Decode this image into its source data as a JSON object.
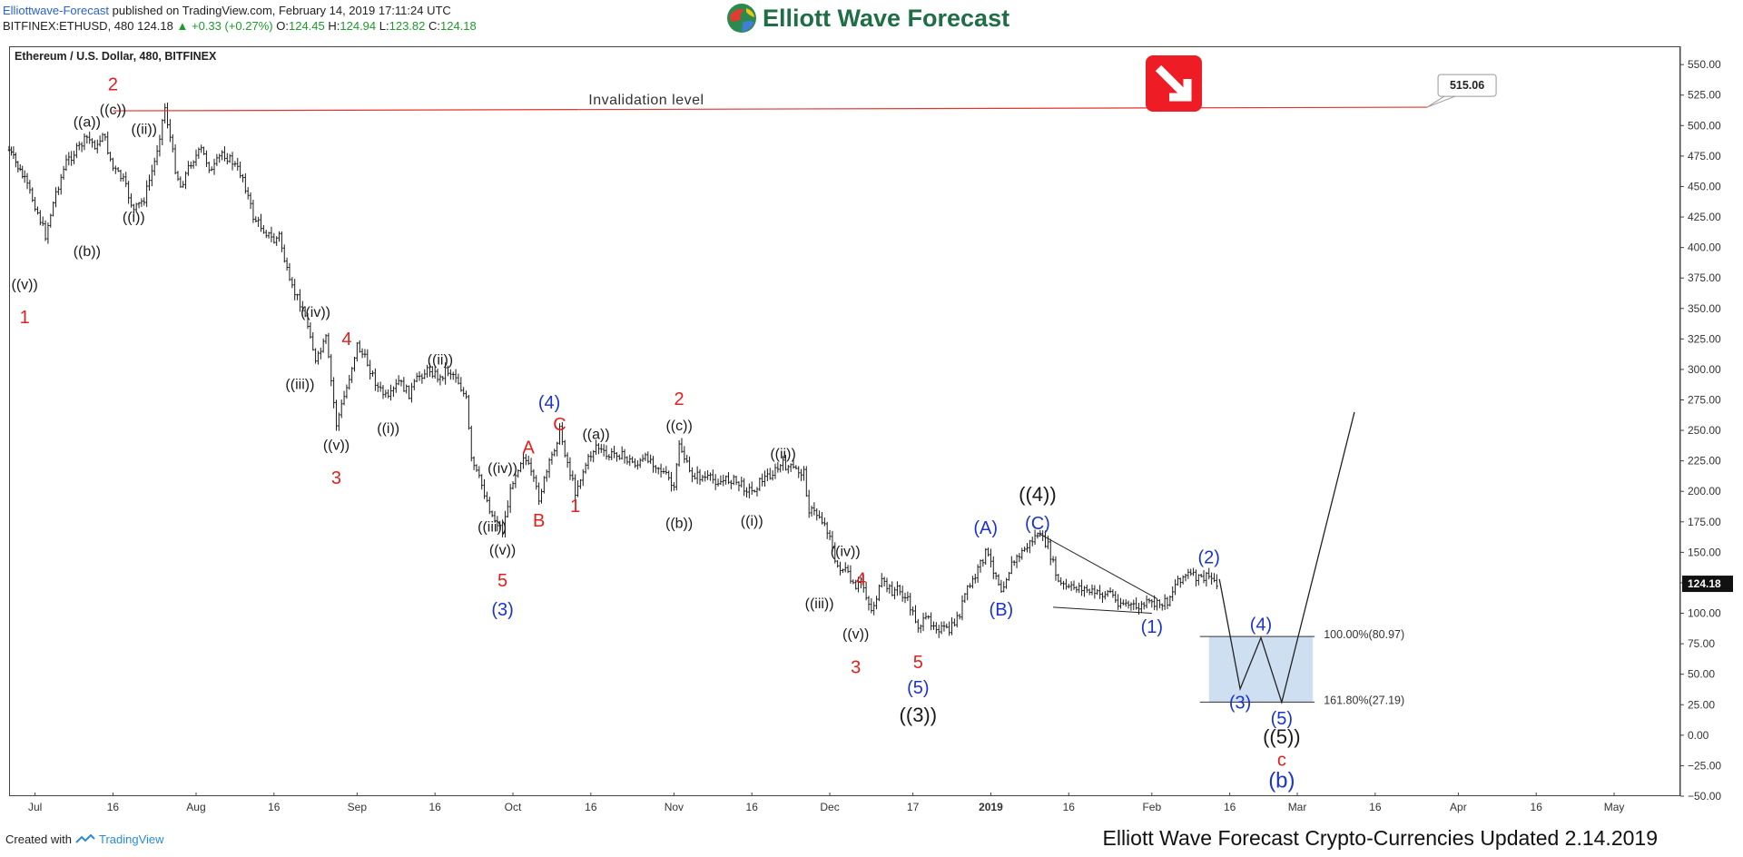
{
  "header": {
    "publisher": "Elliottwave-Forecast",
    "published_text": "published on TradingView.com, February 14, 2019 17:11:24 UTC",
    "ticker": "BITFINEX:ETHUSD, 480",
    "last": "124.18",
    "change": "+0.33 (+0.27%)",
    "o_label": "O:",
    "o_value": "124.45",
    "h_label": "H:",
    "h_value": "124.94",
    "l_label": "L:",
    "l_value": "123.82",
    "c_label": "C:",
    "c_value": "124.18"
  },
  "logo": {
    "text": "Elliott Wave Forecast"
  },
  "footer": {
    "created_with": "Created with",
    "tradingview": "TradingView",
    "update_text": "Elliott Wave Forecast Crypto-Currencies Updated 2.14.2019"
  },
  "chart_data": {
    "type": "candlestick",
    "title": "Ethereum / U.S. Dollar, 480, BITFINEX",
    "ylim": [
      -50,
      565
    ],
    "y_ticks": [
      "550.00",
      "525.00",
      "500.00",
      "475.00",
      "450.00",
      "425.00",
      "400.00",
      "375.00",
      "350.00",
      "325.00",
      "300.00",
      "275.00",
      "250.00",
      "225.00",
      "200.00",
      "175.00",
      "150.00",
      "125.00",
      "100.00",
      "75.00",
      "50.00",
      "25.00",
      "0.00",
      "−25.00",
      "−50.00"
    ],
    "x_ticks": [
      "Jul",
      "16",
      "Aug",
      "16",
      "Sep",
      "16",
      "Oct",
      "16",
      "Nov",
      "16",
      "Dec",
      "17",
      "2019",
      "16",
      "Feb",
      "16",
      "Mar",
      "16",
      "Apr",
      "16",
      "May"
    ],
    "x_range": [
      "2018-06-26",
      "2019-05-12"
    ],
    "last_price_label": "124.18",
    "price_path": [
      [
        "2018-06-26",
        480
      ],
      [
        "2018-06-29",
        455
      ],
      [
        "2018-07-01",
        435
      ],
      [
        "2018-07-03",
        410
      ],
      [
        "2018-07-05",
        445
      ],
      [
        "2018-07-07",
        470
      ],
      [
        "2018-07-09",
        480
      ],
      [
        "2018-07-11",
        490
      ],
      [
        "2018-07-13",
        482
      ],
      [
        "2018-07-14",
        495
      ],
      [
        "2018-07-16",
        465
      ],
      [
        "2018-07-18",
        455
      ],
      [
        "2018-07-20",
        430
      ],
      [
        "2018-07-22",
        440
      ],
      [
        "2018-07-24",
        470
      ],
      [
        "2018-07-26",
        515
      ],
      [
        "2018-07-28",
        465
      ],
      [
        "2018-07-29",
        450
      ],
      [
        "2018-07-31",
        470
      ],
      [
        "2018-08-02",
        480
      ],
      [
        "2018-08-04",
        462
      ],
      [
        "2018-08-06",
        478
      ],
      [
        "2018-08-08",
        470
      ],
      [
        "2018-08-10",
        458
      ],
      [
        "2018-08-12",
        425
      ],
      [
        "2018-08-14",
        415
      ],
      [
        "2018-08-16",
        405
      ],
      [
        "2018-08-17",
        410
      ],
      [
        "2018-08-19",
        370
      ],
      [
        "2018-08-21",
        355
      ],
      [
        "2018-08-23",
        330
      ],
      [
        "2018-08-24",
        305
      ],
      [
        "2018-08-26",
        325
      ],
      [
        "2018-08-28",
        255
      ],
      [
        "2018-08-30",
        285
      ],
      [
        "2018-09-01",
        320
      ],
      [
        "2018-09-03",
        305
      ],
      [
        "2018-09-05",
        285
      ],
      [
        "2018-09-07",
        275
      ],
      [
        "2018-09-09",
        290
      ],
      [
        "2018-09-11",
        280
      ],
      [
        "2018-09-13",
        295
      ],
      [
        "2018-09-15",
        300
      ],
      [
        "2018-09-17",
        292
      ],
      [
        "2018-09-18",
        300
      ],
      [
        "2018-09-20",
        295
      ],
      [
        "2018-09-22",
        275
      ],
      [
        "2018-09-23",
        225
      ],
      [
        "2018-09-25",
        205
      ],
      [
        "2018-09-27",
        180
      ],
      [
        "2018-09-29",
        168
      ],
      [
        "2018-10-01",
        210
      ],
      [
        "2018-10-03",
        230
      ],
      [
        "2018-10-04",
        220
      ],
      [
        "2018-10-06",
        195
      ],
      [
        "2018-10-08",
        222
      ],
      [
        "2018-10-10",
        250
      ],
      [
        "2018-10-12",
        215
      ],
      [
        "2018-10-13",
        200
      ],
      [
        "2018-10-15",
        222
      ],
      [
        "2018-10-17",
        238
      ],
      [
        "2018-10-19",
        228
      ],
      [
        "2018-10-21",
        232
      ],
      [
        "2018-10-23",
        226
      ],
      [
        "2018-10-25",
        222
      ],
      [
        "2018-10-27",
        228
      ],
      [
        "2018-10-29",
        220
      ],
      [
        "2018-10-31",
        210
      ],
      [
        "2018-11-01",
        200
      ],
      [
        "2018-11-02",
        240
      ],
      [
        "2018-11-04",
        215
      ],
      [
        "2018-11-06",
        212
      ],
      [
        "2018-11-08",
        210
      ],
      [
        "2018-11-10",
        208
      ],
      [
        "2018-11-12",
        210
      ],
      [
        "2018-11-14",
        205
      ],
      [
        "2018-11-16",
        200
      ],
      [
        "2018-11-18",
        210
      ],
      [
        "2018-11-20",
        215
      ],
      [
        "2018-11-22",
        222
      ],
      [
        "2018-11-24",
        218
      ],
      [
        "2018-11-26",
        215
      ],
      [
        "2018-11-27",
        185
      ],
      [
        "2018-11-29",
        180
      ],
      [
        "2018-12-01",
        165
      ],
      [
        "2018-12-02",
        140
      ],
      [
        "2018-12-04",
        135
      ],
      [
        "2018-12-06",
        118
      ],
      [
        "2018-12-07",
        128
      ],
      [
        "2018-12-09",
        102
      ],
      [
        "2018-12-11",
        125
      ],
      [
        "2018-12-13",
        118
      ],
      [
        "2018-12-14",
        120
      ],
      [
        "2018-12-16",
        110
      ],
      [
        "2018-12-18",
        90
      ],
      [
        "2018-12-20",
        95
      ],
      [
        "2018-12-22",
        88
      ],
      [
        "2018-12-24",
        85
      ],
      [
        "2018-12-26",
        100
      ],
      [
        "2018-12-27",
        115
      ],
      [
        "2018-12-29",
        130
      ],
      [
        "2018-12-31",
        150
      ],
      [
        "2019-01-02",
        132
      ],
      [
        "2019-01-03",
        120
      ],
      [
        "2019-01-05",
        140
      ],
      [
        "2019-01-07",
        150
      ],
      [
        "2019-01-09",
        160
      ],
      [
        "2019-01-10",
        165
      ],
      [
        "2019-01-12",
        155
      ],
      [
        "2019-01-14",
        125
      ],
      [
        "2019-01-16",
        120
      ],
      [
        "2019-01-18",
        122
      ],
      [
        "2019-01-20",
        118
      ],
      [
        "2019-01-22",
        115
      ],
      [
        "2019-01-24",
        118
      ],
      [
        "2019-01-25",
        110
      ],
      [
        "2019-01-27",
        108
      ],
      [
        "2019-01-29",
        104
      ],
      [
        "2019-01-31",
        108
      ],
      [
        "2019-02-02",
        107
      ],
      [
        "2019-02-04",
        110
      ],
      [
        "2019-02-06",
        128
      ],
      [
        "2019-02-08",
        132
      ],
      [
        "2019-02-10",
        128
      ],
      [
        "2019-02-12",
        130
      ],
      [
        "2019-02-14",
        124
      ]
    ],
    "invalidation": {
      "value": 515.06,
      "label": "Invalidation level",
      "from": "2018-07-16",
      "to": "2019-03-26",
      "price_label": "515.06"
    },
    "projection": {
      "path": [
        [
          "2019-02-14",
          128
        ],
        [
          "2019-02-18",
          38
        ],
        [
          "2019-02-22",
          80
        ],
        [
          "2019-02-26",
          27
        ],
        [
          "2019-03-12",
          265
        ]
      ],
      "box": {
        "from": "2019-02-12",
        "to": "2019-03-04",
        "top": 80.97,
        "bottom": 27.19
      },
      "fib_labels": [
        {
          "text": "100.00%(80.97)",
          "value": 80.97
        },
        {
          "text": "161.80%(27.19)",
          "value": 27.19
        }
      ]
    },
    "trendlines": [
      [
        [
          "2019-01-10",
          166
        ],
        [
          "2019-02-02",
          112
        ]
      ],
      [
        [
          "2019-01-13",
          105
        ],
        [
          "2019-02-01",
          100
        ]
      ]
    ],
    "wave_labels": [
      {
        "t": "2",
        "d": "2018-07-16",
        "v": 529,
        "c": "red",
        "s": 20
      },
      {
        "t": "((c))",
        "d": "2018-07-16",
        "v": 509,
        "c": "black",
        "s": 16
      },
      {
        "t": "((a))",
        "d": "2018-07-11",
        "v": 499,
        "c": "black",
        "s": 16
      },
      {
        "t": "((ii))",
        "d": "2018-07-22",
        "v": 493,
        "c": "black",
        "s": 16
      },
      {
        "t": "((i))",
        "d": "2018-07-20",
        "v": 421,
        "c": "black",
        "s": 16
      },
      {
        "t": "((b))",
        "d": "2018-07-11",
        "v": 393,
        "c": "black",
        "s": 16
      },
      {
        "t": "((v))",
        "d": "2018-06-29",
        "v": 366,
        "c": "black",
        "s": 16
      },
      {
        "t": "1",
        "d": "2018-06-29",
        "v": 338,
        "c": "red",
        "s": 20
      },
      {
        "t": "((iv))",
        "d": "2018-08-24",
        "v": 343,
        "c": "black",
        "s": 16
      },
      {
        "t": "4",
        "d": "2018-08-30",
        "v": 320,
        "c": "red",
        "s": 20
      },
      {
        "t": "((ii))",
        "d": "2018-09-17",
        "v": 304,
        "c": "black",
        "s": 16
      },
      {
        "t": "((iii))",
        "d": "2018-08-21",
        "v": 284,
        "c": "black",
        "s": 16
      },
      {
        "t": "((i))",
        "d": "2018-09-07",
        "v": 248,
        "c": "black",
        "s": 16
      },
      {
        "t": "((v))",
        "d": "2018-08-28",
        "v": 234,
        "c": "black",
        "s": 16
      },
      {
        "t": "3",
        "d": "2018-08-28",
        "v": 206,
        "c": "red",
        "s": 20
      },
      {
        "t": "(4)",
        "d": "2018-10-08",
        "v": 268,
        "c": "blue",
        "s": 20
      },
      {
        "t": "C",
        "d": "2018-10-10",
        "v": 250,
        "c": "red",
        "s": 20
      },
      {
        "t": "A",
        "d": "2018-10-04",
        "v": 231,
        "c": "red",
        "s": 20
      },
      {
        "t": "((iv))",
        "d": "2018-09-29",
        "v": 215,
        "c": "black",
        "s": 16
      },
      {
        "t": "((a))",
        "d": "2018-10-17",
        "v": 243,
        "c": "black",
        "s": 16
      },
      {
        "t": "2",
        "d": "2018-11-02",
        "v": 271,
        "c": "red",
        "s": 20
      },
      {
        "t": "((c))",
        "d": "2018-11-02",
        "v": 250,
        "c": "black",
        "s": 16
      },
      {
        "t": "((ii))",
        "d": "2018-11-22",
        "v": 227,
        "c": "black",
        "s": 16
      },
      {
        "t": "1",
        "d": "2018-10-13",
        "v": 183,
        "c": "red",
        "s": 20
      },
      {
        "t": "B",
        "d": "2018-10-06",
        "v": 171,
        "c": "red",
        "s": 20
      },
      {
        "t": "((iii))",
        "d": "2018-09-27",
        "v": 167,
        "c": "black",
        "s": 16
      },
      {
        "t": "((b))",
        "d": "2018-11-02",
        "v": 170,
        "c": "black",
        "s": 16
      },
      {
        "t": "((i))",
        "d": "2018-11-16",
        "v": 172,
        "c": "black",
        "s": 16
      },
      {
        "t": "((v))",
        "d": "2018-09-29",
        "v": 148,
        "c": "black",
        "s": 16
      },
      {
        "t": "5",
        "d": "2018-09-29",
        "v": 122,
        "c": "red",
        "s": 20
      },
      {
        "t": "(3)",
        "d": "2018-09-29",
        "v": 98,
        "c": "blue",
        "s": 20
      },
      {
        "t": "((iv))",
        "d": "2018-12-04",
        "v": 147,
        "c": "black",
        "s": 16
      },
      {
        "t": "4",
        "d": "2018-12-07",
        "v": 123,
        "c": "red",
        "s": 20
      },
      {
        "t": "((iii))",
        "d": "2018-11-29",
        "v": 104,
        "c": "black",
        "s": 16
      },
      {
        "t": "((v))",
        "d": "2018-12-06",
        "v": 79,
        "c": "black",
        "s": 16
      },
      {
        "t": "3",
        "d": "2018-12-06",
        "v": 51,
        "c": "red",
        "s": 20
      },
      {
        "t": "5",
        "d": "2018-12-18",
        "v": 55,
        "c": "red",
        "s": 20
      },
      {
        "t": "(5)",
        "d": "2018-12-18",
        "v": 34,
        "c": "blue",
        "s": 20
      },
      {
        "t": "((3))",
        "d": "2018-12-18",
        "v": 11,
        "c": "black",
        "s": 22
      },
      {
        "t": "((4))",
        "d": "2019-01-10",
        "v": 192,
        "c": "black",
        "s": 22
      },
      {
        "t": "(C)",
        "d": "2019-01-10",
        "v": 169,
        "c": "blue",
        "s": 20
      },
      {
        "t": "(A)",
        "d": "2018-12-31",
        "v": 165,
        "c": "blue",
        "s": 20
      },
      {
        "t": "(B)",
        "d": "2019-01-03",
        "v": 98,
        "c": "blue",
        "s": 20
      },
      {
        "t": "(1)",
        "d": "2019-02-01",
        "v": 84,
        "c": "blue",
        "s": 20
      },
      {
        "t": "(2)",
        "d": "2019-02-12",
        "v": 141,
        "c": "blue",
        "s": 20
      },
      {
        "t": "(4)",
        "d": "2019-02-22",
        "v": 86,
        "c": "blue",
        "s": 20
      },
      {
        "t": "(3)",
        "d": "2019-02-18",
        "v": 22,
        "c": "blue",
        "s": 20
      },
      {
        "t": "(5)",
        "d": "2019-02-26",
        "v": 9,
        "c": "blue",
        "s": 20
      },
      {
        "t": "((5))",
        "d": "2019-02-26",
        "v": -7,
        "c": "black",
        "s": 22
      },
      {
        "t": "c",
        "d": "2019-02-26",
        "v": -25,
        "c": "red",
        "s": 20
      },
      {
        "t": "(b)",
        "d": "2019-02-26",
        "v": -43,
        "c": "blue",
        "s": 24
      }
    ],
    "colors": {
      "candle": "#1a1a1a",
      "invalidation": "#e0342f",
      "red": "#e0201e",
      "blue": "#1c35c9",
      "black": "#1a1a1a",
      "box": "#c4d9ef",
      "badge": "#ee1c25"
    }
  }
}
